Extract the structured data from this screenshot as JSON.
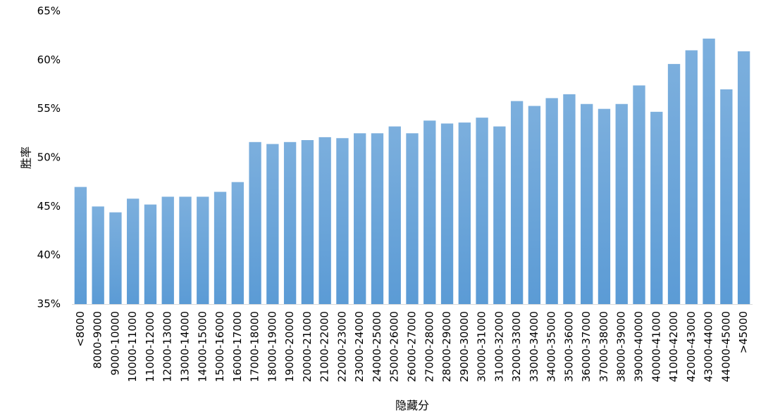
{
  "chart_data": {
    "type": "bar",
    "y_label": "胜率",
    "x_label": "隐藏分",
    "categories": [
      "<8000",
      "8000-9000",
      "9000-10000",
      "10000-11000",
      "11000-12000",
      "12000-13000",
      "13000-14000",
      "14000-15000",
      "15000-16000",
      "16000-17000",
      "17000-18000",
      "18000-19000",
      "19000-20000",
      "20000-21000",
      "21000-22000",
      "22000-23000",
      "23000-24000",
      "24000-25000",
      "25000-26000",
      "26000-27000",
      "27000-28000",
      "28000-29000",
      "29000-30000",
      "30000-31000",
      "31000-32000",
      "32000-33000",
      "33000-34000",
      "34000-35000",
      "35000-36000",
      "36000-37000",
      "37000-38000",
      "38000-39000",
      "39000-40000",
      "40000-41000",
      "41000-42000",
      "42000-43000",
      "43000-44000",
      "44000-45000",
      ">45000"
    ],
    "values": [
      47.0,
      45.0,
      44.4,
      45.8,
      45.2,
      46.0,
      46.0,
      46.0,
      46.5,
      47.5,
      51.6,
      51.4,
      51.6,
      51.8,
      52.1,
      52.0,
      52.5,
      52.5,
      53.2,
      52.5,
      53.8,
      53.5,
      53.6,
      54.1,
      53.2,
      55.8,
      55.3,
      56.1,
      56.5,
      55.5,
      55.0,
      55.5,
      57.4,
      54.7,
      59.6,
      61.0,
      62.2,
      57.0,
      60.9
    ],
    "color": "#5b9bd5",
    "ylim": [
      35,
      65
    ],
    "yticks": [
      {
        "value": 35,
        "label": "35%"
      },
      {
        "value": 40,
        "label": "40%"
      },
      {
        "value": 45,
        "label": "45%"
      },
      {
        "value": 50,
        "label": "50%"
      },
      {
        "value": 55,
        "label": "55%"
      },
      {
        "value": 60,
        "label": "60%"
      },
      {
        "value": 65,
        "label": "65%"
      }
    ],
    "grid": false
  }
}
